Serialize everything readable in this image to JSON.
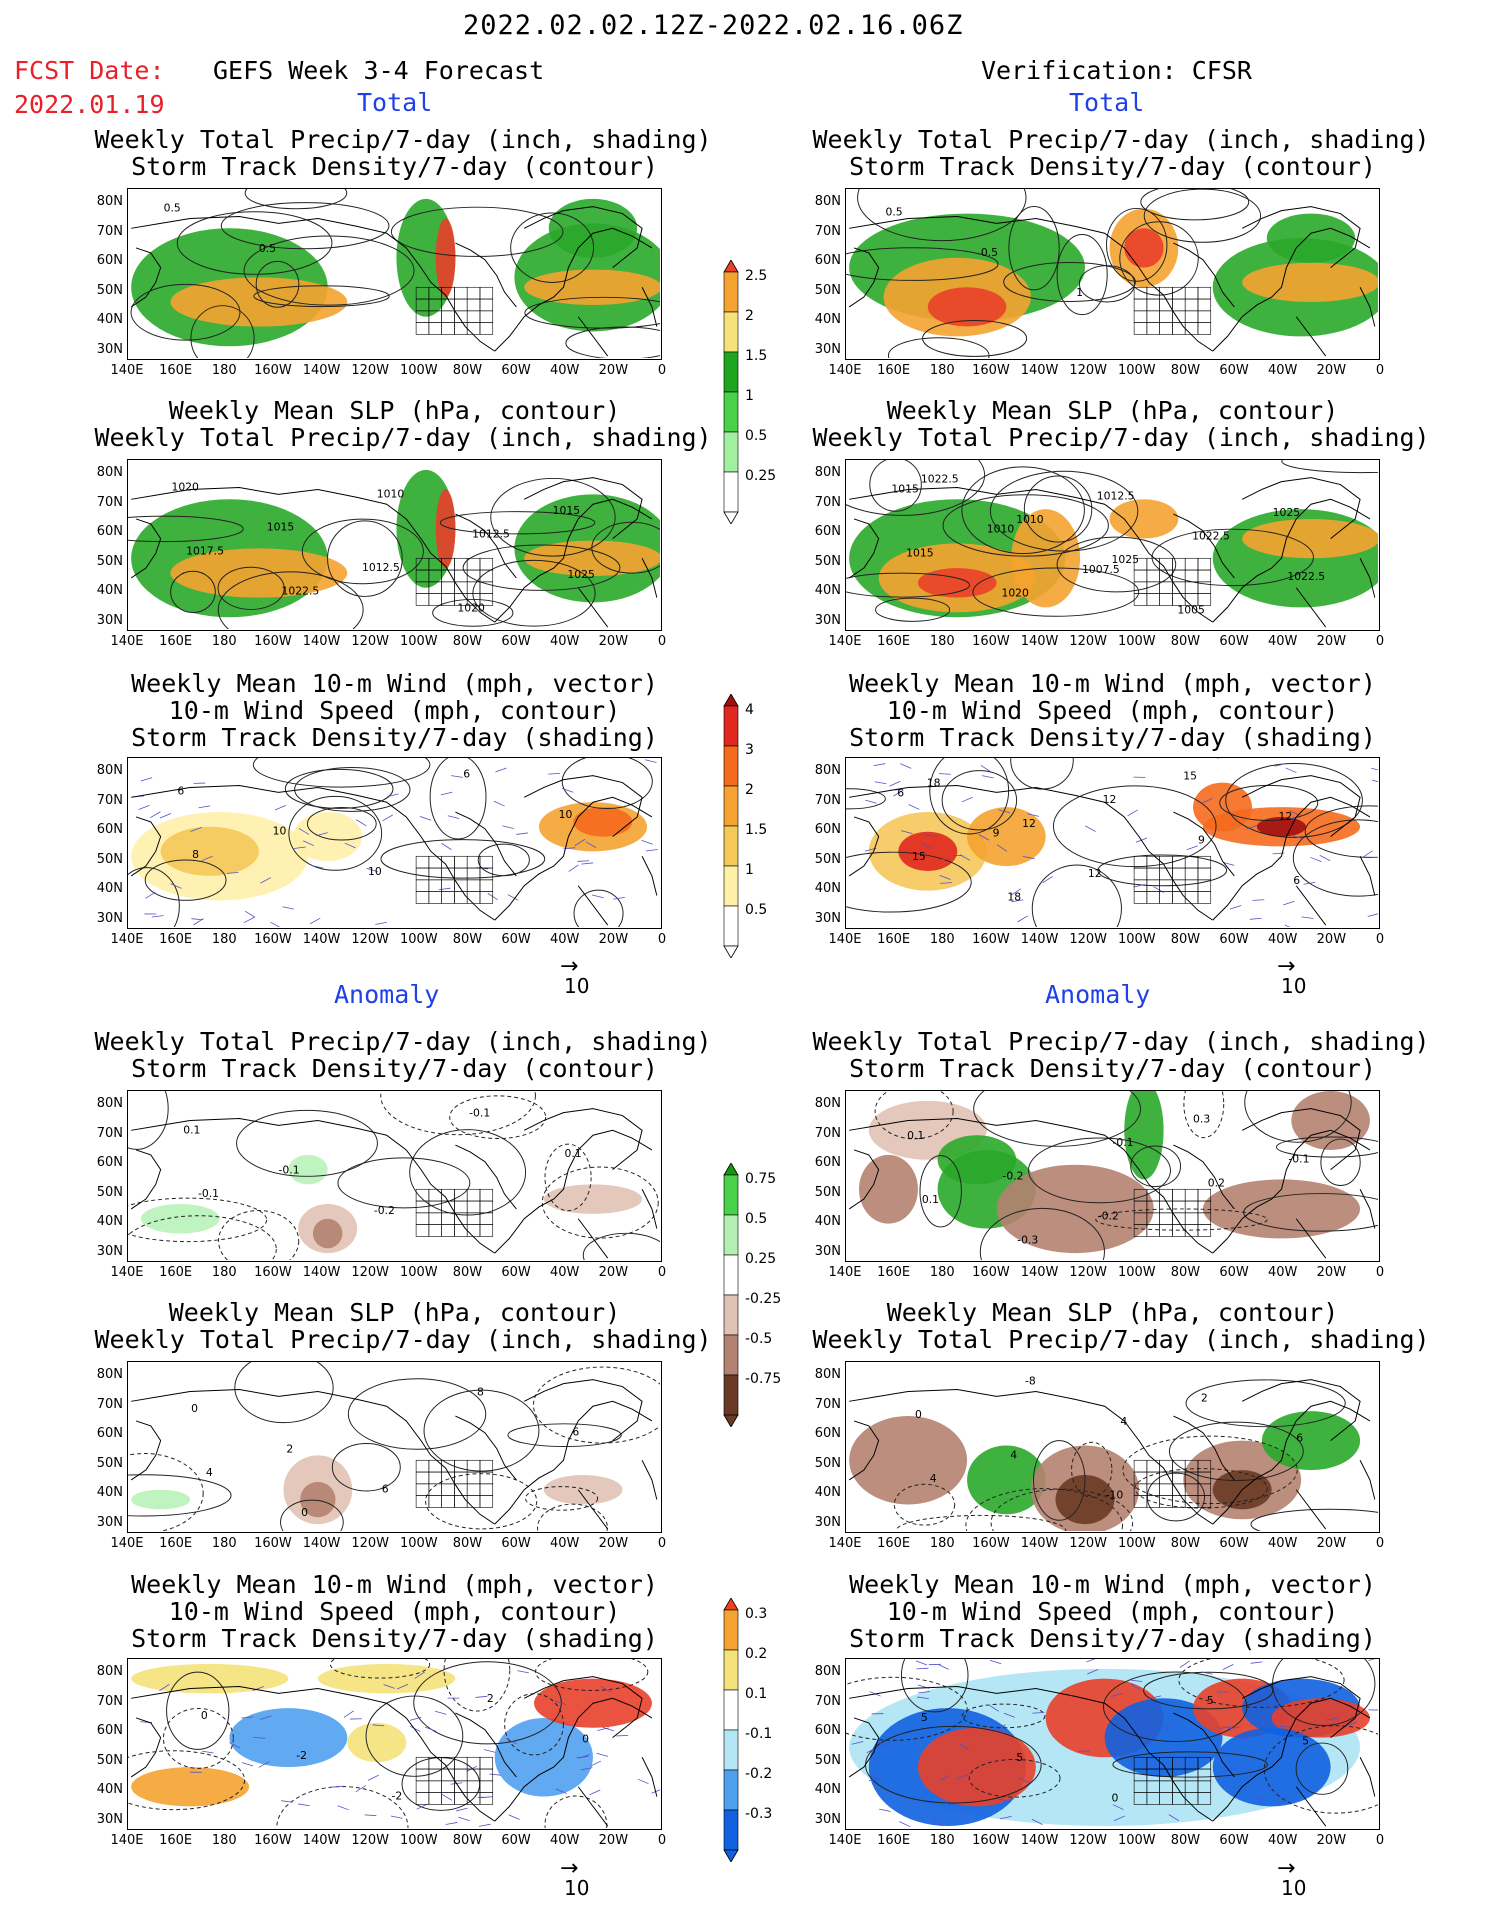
{
  "header": {
    "period": "2022.02.02.12Z-2022.02.16.06Z",
    "fcst_label": "FCST Date:",
    "fcst_date": "2022.01.19",
    "left_title": "GEFS Week 3-4 Forecast",
    "right_title": "Verification: CFSR"
  },
  "sections": {
    "total": "Total",
    "anomaly": "Anomaly"
  },
  "panels": {
    "precip_storm": [
      "Weekly Total Precip/7-day (inch, shading)",
      "Storm Track Density/7-day (contour)"
    ],
    "slp_precip": [
      "Weekly Mean SLP (hPa, contour)",
      "Weekly Total Precip/7-day (inch, shading)"
    ],
    "wind_storm": [
      "Weekly Mean 10-m Wind (mph, vector)",
      "10-m Wind Speed (mph, contour)",
      "Storm Track Density/7-day (shading)"
    ]
  },
  "axes": {
    "lat_labels": [
      "80N",
      "70N",
      "60N",
      "50N",
      "40N",
      "30N"
    ],
    "lon_labels": [
      "140E",
      "160E",
      "180",
      "160W",
      "140W",
      "120W",
      "100W",
      "80W",
      "60W",
      "40W",
      "20W",
      "0"
    ]
  },
  "vector_reference": "10",
  "colorbars": {
    "precip_total": {
      "labels": [
        "2.5",
        "2",
        "1.5",
        "1",
        "0.5",
        "0.25"
      ],
      "colors": [
        "#e8402a",
        "#f5a330",
        "#f5e27a",
        "#1ea61e",
        "#4ad14a",
        "#a0f0a0",
        "#ffffff"
      ]
    },
    "storm_total": {
      "labels": [
        "4",
        "3",
        "2",
        "1.5",
        "1",
        "0.5"
      ],
      "colors": [
        "#a01010",
        "#e0281e",
        "#f56a1e",
        "#f5a330",
        "#f5c85a",
        "#fff0a8",
        "#ffffff"
      ]
    },
    "precip_anom": {
      "labels": [
        "0.75",
        "0.5",
        "0.25",
        "-0.25",
        "-0.5",
        "-0.75"
      ],
      "colors": [
        "#109a10",
        "#4ad14a",
        "#b4f0b4",
        "#ffffff",
        "#e0c2b4",
        "#b48270",
        "#6a3a24"
      ]
    },
    "storm_anom": {
      "labels": [
        "0.3",
        "0.2",
        "0.1",
        "-0.1",
        "-0.2",
        "-0.3"
      ],
      "colors": [
        "#f0401e",
        "#f5a330",
        "#f5e27a",
        "#ffffff",
        "#b4e6f5",
        "#50a0f0",
        "#1060e0"
      ]
    }
  },
  "contour_labels": {
    "r1_left": [
      "0.5",
      "0.5"
    ],
    "r1_right": [
      "0.5",
      "0.5",
      "1"
    ],
    "r2_left": [
      "1020",
      "1015",
      "1012.5",
      "1020",
      "1015",
      "1017.5",
      "1022.5",
      "1010",
      "1012.5",
      "1025"
    ],
    "r2_right": [
      "1015",
      "1010",
      "1007.5",
      "1005",
      "1025",
      "1015",
      "1020",
      "1012.5",
      "1022.5",
      "1022.5",
      "1022.5",
      "1010",
      "1025"
    ],
    "r3_left": [
      "6",
      "10",
      "10",
      "6",
      "10",
      "8"
    ],
    "r3_right": [
      "6",
      "9",
      "12",
      "15",
      "12",
      "15",
      "18",
      "12",
      "9",
      "6",
      "18",
      "12"
    ],
    "r4_left": [
      "0.1",
      "-0.1",
      "-0.2",
      "-0.1",
      "0.1",
      "-0.1"
    ],
    "r4_right": [
      "0.1",
      "-0.2",
      "-0.2",
      "0.3",
      "-0.1",
      "0.1",
      "-0.3",
      "-0.1",
      "0.2"
    ],
    "r5_left": [
      "0",
      "2",
      "6",
      "8",
      "6",
      "4",
      "0"
    ],
    "r5_right": [
      "0",
      "4",
      "-10",
      "2",
      "6",
      "4",
      "-8",
      "4"
    ],
    "r6_left": [
      "0",
      "-2",
      "-2",
      "2",
      "0"
    ],
    "r6_right": [
      "5",
      "5",
      "0",
      "5",
      "5"
    ]
  }
}
